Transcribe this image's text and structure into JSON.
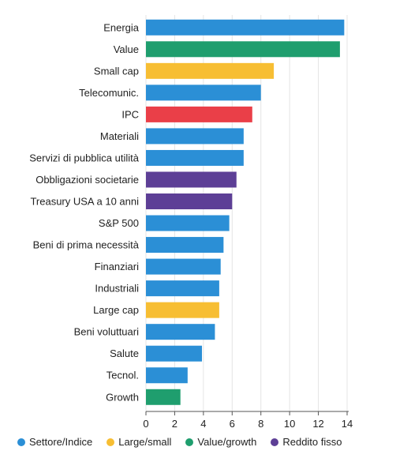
{
  "chart_data": {
    "type": "bar",
    "orientation": "horizontal",
    "title": "",
    "xlabel": "",
    "ylabel": "",
    "xlim": [
      0,
      14
    ],
    "xticks": [
      "0",
      "2",
      "4",
      "6",
      "8",
      "10",
      "12",
      "14"
    ],
    "grid": true,
    "legend_position": "bottom",
    "categories": [
      "Energia",
      "Value",
      "Small cap",
      "Telecomunic.",
      "IPC",
      "Materiali",
      "Servizi di pubblica utilità",
      "Obbligazioni societarie",
      "Treasury USA a 10 anni",
      "S&P 500",
      "Beni di prima necessità",
      "Finanziari",
      "Industriali",
      "Large cap",
      "Beni voluttuari",
      "Salute",
      "Tecnol.",
      "Growth"
    ],
    "values": [
      13.8,
      13.5,
      8.9,
      8.0,
      7.4,
      6.8,
      6.8,
      6.3,
      6.0,
      5.8,
      5.4,
      5.2,
      5.1,
      5.1,
      4.8,
      3.9,
      2.9,
      2.4
    ],
    "groups": [
      "settore",
      "value_growth",
      "large_small",
      "settore",
      "ipc",
      "settore",
      "settore",
      "reddito",
      "reddito",
      "settore",
      "settore",
      "settore",
      "settore",
      "large_small",
      "settore",
      "settore",
      "settore",
      "value_growth"
    ],
    "group_colors": {
      "settore": "#2b8fd6",
      "large_small": "#f7be33",
      "value_growth": "#1f9e6e",
      "reddito": "#5d3f96",
      "ipc": "#ea3f48"
    },
    "legend": [
      {
        "group": "settore",
        "label": "Settore/Indice"
      },
      {
        "group": "large_small",
        "label": "Large/small"
      },
      {
        "group": "value_growth",
        "label": "Value/growth"
      },
      {
        "group": "reddito",
        "label": "Reddito fisso"
      }
    ]
  }
}
